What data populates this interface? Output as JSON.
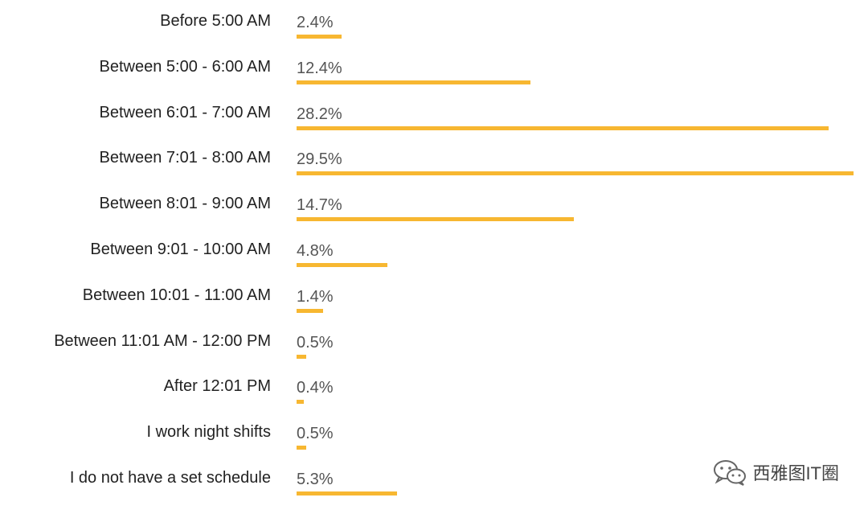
{
  "colors": {
    "bar": "#f7b731",
    "label": "#222222",
    "value": "#555555"
  },
  "chart_data": {
    "type": "bar",
    "orientation": "horizontal",
    "categories": [
      "Before 5:00 AM",
      "Between 5:00 - 6:00 AM",
      "Between 6:01 - 7:00 AM",
      "Between 7:01 - 8:00 AM",
      "Between 8:01 - 9:00 AM",
      "Between 9:01 - 10:00 AM",
      "Between 10:01 - 11:00 AM",
      "Between 11:01 AM - 12:00 PM",
      "After 12:01 PM",
      "I work night shifts",
      "I do not have a set schedule"
    ],
    "values": [
      2.4,
      12.4,
      28.2,
      29.5,
      14.7,
      4.8,
      1.4,
      0.5,
      0.4,
      0.5,
      5.3
    ],
    "value_labels": [
      "2.4%",
      "12.4%",
      "28.2%",
      "29.5%",
      "14.7%",
      "4.8%",
      "1.4%",
      "0.5%",
      "0.4%",
      "0.5%",
      "5.3%"
    ],
    "unit": "%",
    "title": "",
    "xlabel": "",
    "ylabel": "",
    "xlim": [
      0,
      29.5
    ],
    "grid": false,
    "legend": "none"
  },
  "watermark": {
    "icon": "wechat-icon",
    "text": "西雅图IT圈"
  }
}
